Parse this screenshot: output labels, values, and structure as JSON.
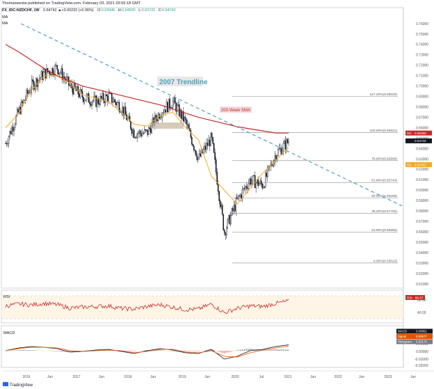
{
  "header": {
    "line1": "Thomaswestw published on TradingView.com, February 03, 2021 03:55:18 GMT",
    "symbol": "FX_IDC:NZDCHF, 1W",
    "ohlc_prefix": "0.64742 ▲+0.00232 (+0.36%)",
    "o_label": "O:",
    "o_value": "0.63946",
    "h_label": "H:",
    "h_value": "0.64835",
    "l_label": "L:",
    "l_value": "0.63722",
    "c_label": "C:",
    "c_value": "0.64742",
    "ma1": "MA",
    "ma2": "MA"
  },
  "annotations": {
    "trendline_label": "2007 Trendline",
    "sma_label": "200-Week SMA"
  },
  "fib_levels": [
    {
      "label": "127.20%(0.69026)",
      "value": 0.69026
    },
    {
      "label": "100.00%(0.65531)",
      "value": 0.65531
    },
    {
      "label": "78.60%(0.62846)",
      "value": 0.62846
    },
    {
      "label": "61.80%(0.60744)",
      "value": 0.60744
    },
    {
      "label": "50.00%(0.59268)",
      "value": 0.59268
    },
    {
      "label": "38.20%(0.57792)",
      "value": 0.57792
    },
    {
      "label": "23.60%(0.55965)",
      "value": 0.55965
    },
    {
      "label": "0.00%(0.53013)",
      "value": 0.53013
    }
  ],
  "price_badges": [
    {
      "text": "MA",
      "value": "0.65493",
      "y": 0.65493,
      "color": "#c62828"
    },
    {
      "text": "",
      "value": "0.64742",
      "y": 0.64742,
      "color": "#131722"
    },
    {
      "text": "MA",
      "value": "0.62453",
      "y": 0.62453,
      "color": "#f5a623"
    }
  ],
  "rsi": {
    "label": "RSI",
    "badge_text": "RSI",
    "badge_value": "66.87",
    "ticks": [
      "60.00",
      "40.00"
    ]
  },
  "macd": {
    "label": "MACD",
    "badges": [
      {
        "text": "MACD",
        "value": "0.00851",
        "color": "#131722"
      },
      {
        "text": "Signal",
        "value": "0.00677",
        "color": "#e65100"
      },
      {
        "text": "Histogram",
        "value": "0.00174",
        "color": "#787b86"
      }
    ],
    "ticks": [
      "0.01000",
      "0.00000",
      "-0.01000",
      "-0.02000"
    ]
  },
  "x_labels": [
    "2016",
    "Jun",
    "2017",
    "Jun",
    "2018",
    "Jun",
    "2019",
    "Jun",
    "2020",
    "Jul",
    "2021",
    "Jun",
    "2022",
    "Jun",
    "2023",
    "Jun"
  ],
  "footer_logo": "TradingView",
  "colors": {
    "candle": "#131722",
    "sma200": "#c62828",
    "ma_short": "#f5a623",
    "trendline": "#4aa3b8",
    "rsi": "#c62828",
    "macd": "#131722",
    "signal": "#e65100",
    "hist_pos": "#9e9e9e",
    "hist_neg": "#ef9a9a"
  },
  "chart_data": {
    "type": "candlestick",
    "title": "FX_IDC:NZDCHF, 1W",
    "ylim": [
      0.5,
      0.77
    ],
    "y_ticks": [
      "0.76000",
      "0.75000",
      "0.74000",
      "0.73000",
      "0.72000",
      "0.71000",
      "0.70000",
      "0.69000",
      "0.68000",
      "0.67000",
      "0.66000",
      "0.65000",
      "0.64000",
      "0.63000",
      "0.62000",
      "0.61000",
      "0.60000",
      "0.59000",
      "0.58000",
      "0.57000",
      "0.56000",
      "0.55000",
      "0.54000",
      "0.53000",
      "0.52000",
      "0.51000"
    ],
    "x": [
      "2016-01",
      "2016-04",
      "2016-07",
      "2016-10",
      "2017-01",
      "2017-04",
      "2017-07",
      "2017-10",
      "2018-01",
      "2018-04",
      "2018-07",
      "2018-10",
      "2019-01",
      "2019-04",
      "2019-07",
      "2019-10",
      "2020-01",
      "2020-03",
      "2020-05",
      "2020-07",
      "2020-10",
      "2021-01",
      "2021-02"
    ],
    "series": [
      {
        "name": "NZDCHF close",
        "values": [
          0.645,
          0.675,
          0.7,
          0.712,
          0.718,
          0.7,
          0.69,
          0.685,
          0.69,
          0.68,
          0.655,
          0.655,
          0.675,
          0.685,
          0.665,
          0.63,
          0.65,
          0.56,
          0.59,
          0.61,
          0.605,
          0.635,
          0.647
        ]
      },
      {
        "name": "200-Week SMA",
        "values": [
          0.74,
          0.733,
          0.725,
          0.717,
          0.71,
          0.705,
          0.7,
          0.697,
          0.694,
          0.691,
          0.688,
          0.685,
          0.682,
          0.678,
          0.674,
          0.67,
          0.667,
          0.664,
          0.661,
          0.659,
          0.657,
          0.655,
          0.655
        ]
      },
      {
        "name": "RSI",
        "values": [
          52,
          58,
          55,
          60,
          56,
          45,
          48,
          50,
          52,
          44,
          42,
          50,
          56,
          48,
          40,
          42,
          58,
          30,
          44,
          52,
          50,
          60,
          67
        ]
      },
      {
        "name": "MACD",
        "values": [
          0.0,
          0.004,
          0.006,
          0.005,
          0.003,
          -0.002,
          -0.001,
          0.001,
          0.002,
          -0.001,
          -0.004,
          0.0,
          0.003,
          0.001,
          -0.003,
          -0.004,
          0.002,
          -0.012,
          -0.008,
          0.0,
          0.002,
          0.006,
          0.0085
        ]
      },
      {
        "name": "Signal",
        "values": [
          0.0,
          0.003,
          0.005,
          0.005,
          0.004,
          0.0,
          -0.001,
          0.0,
          0.001,
          0.0,
          -0.003,
          -0.001,
          0.002,
          0.002,
          -0.002,
          -0.003,
          0.0,
          -0.008,
          -0.009,
          -0.003,
          0.001,
          0.004,
          0.0068
        ]
      }
    ]
  }
}
